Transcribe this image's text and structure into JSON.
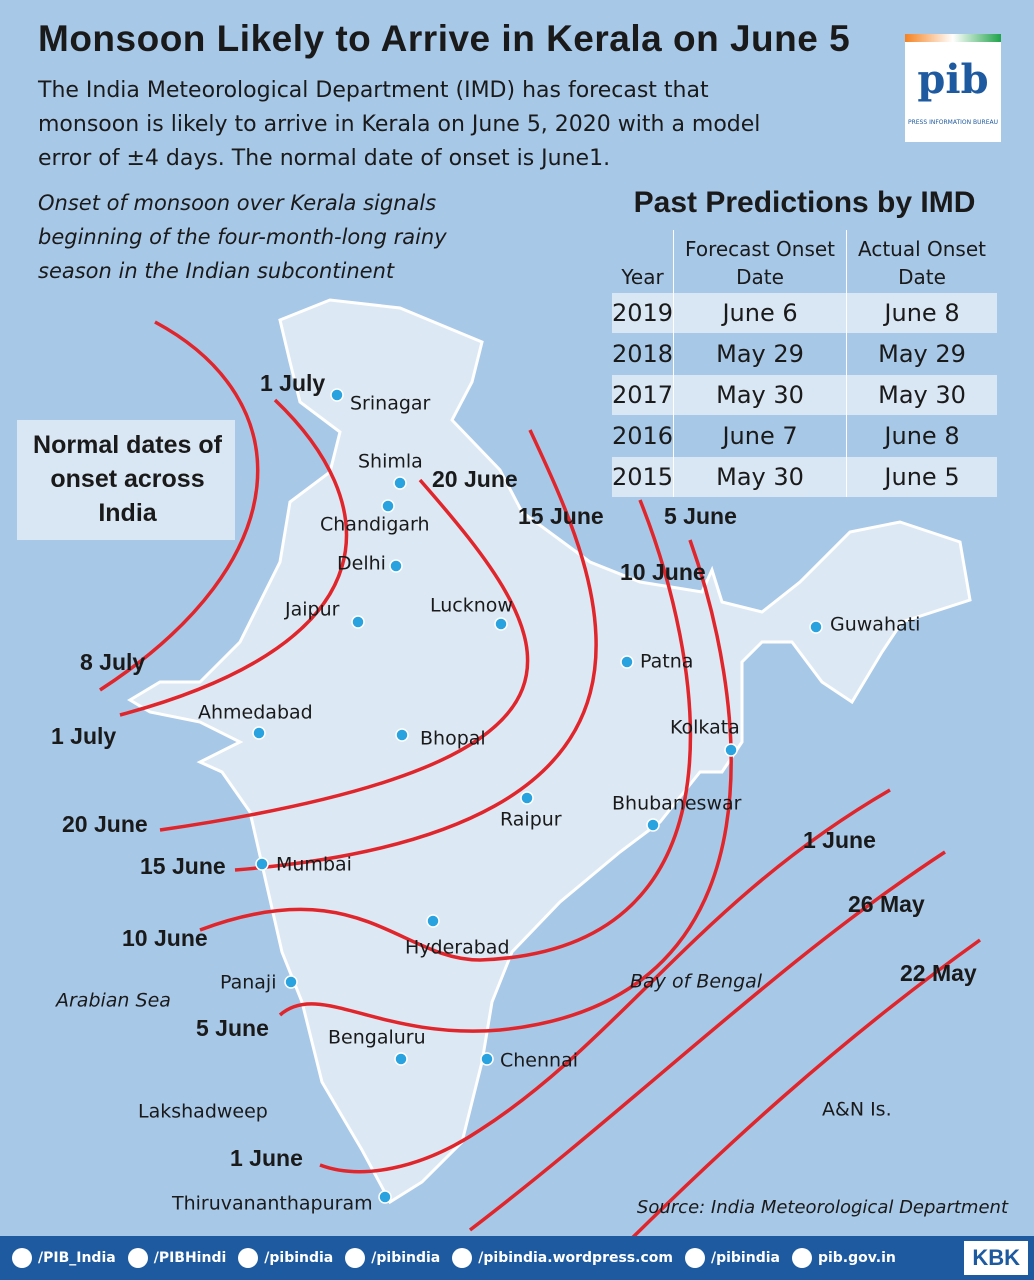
{
  "header": {
    "title": "Monsoon Likely to Arrive in Kerala on June 5",
    "description": "The India Meteorological Department (IMD) has forecast that monsoon is likely to arrive in Kerala on June 5, 2020 with a model error of ±4 days. The normal date of onset is June1.",
    "note": "Onset of monsoon over Kerala signals beginning of the  four-month-long rainy season in the Indian subcontinent"
  },
  "logo": {
    "text": "pib",
    "caption": "PRESS INFORMATION BUREAU"
  },
  "legend": {
    "title": "Normal dates of onset across India"
  },
  "table": {
    "title": "Past Predictions by IMD",
    "columns": [
      "Year",
      "Forecast Onset Date",
      "Actual Onset Date"
    ],
    "rows": [
      [
        "2019",
        "June 6",
        "June 8"
      ],
      [
        "2018",
        "May 29",
        "May 29"
      ],
      [
        "2017",
        "May 30",
        "May 30"
      ],
      [
        "2016",
        "June 7",
        "June 8"
      ],
      [
        "2015",
        "May 30",
        "June 5"
      ]
    ]
  },
  "isoline_labels": [
    "1 July",
    "20 June",
    "15 June",
    "5 June",
    "10 June",
    "8 July",
    "1 July",
    "20 June",
    "15 June",
    "10 June",
    "5 June",
    "1 June",
    "26 May",
    "22 May",
    "1 June"
  ],
  "cities": [
    "Srinagar",
    "Shimla",
    "Chandigarh",
    "Delhi",
    "Jaipur",
    "Lucknow",
    "Patna",
    "Guwahati",
    "Ahmedabad",
    "Bhopal",
    "Kolkata",
    "Raipur",
    "Bhubaneswar",
    "Mumbai",
    "Hyderabad",
    "Panaji",
    "Bengaluru",
    "Chennai",
    "Thiruvananthapuram"
  ],
  "regions": [
    "Arabian Sea",
    "Bay of Bengal",
    "Lakshadweep",
    "A&N Is."
  ],
  "source": "Source: India Meteorological Department",
  "footer": {
    "links": [
      "/PIB_India",
      "/PIBHindi",
      "/pibindia",
      "/pibindia",
      "/pibindia.wordpress.com",
      "/pibindia",
      "pib.gov.in"
    ],
    "brand": "KBK"
  }
}
